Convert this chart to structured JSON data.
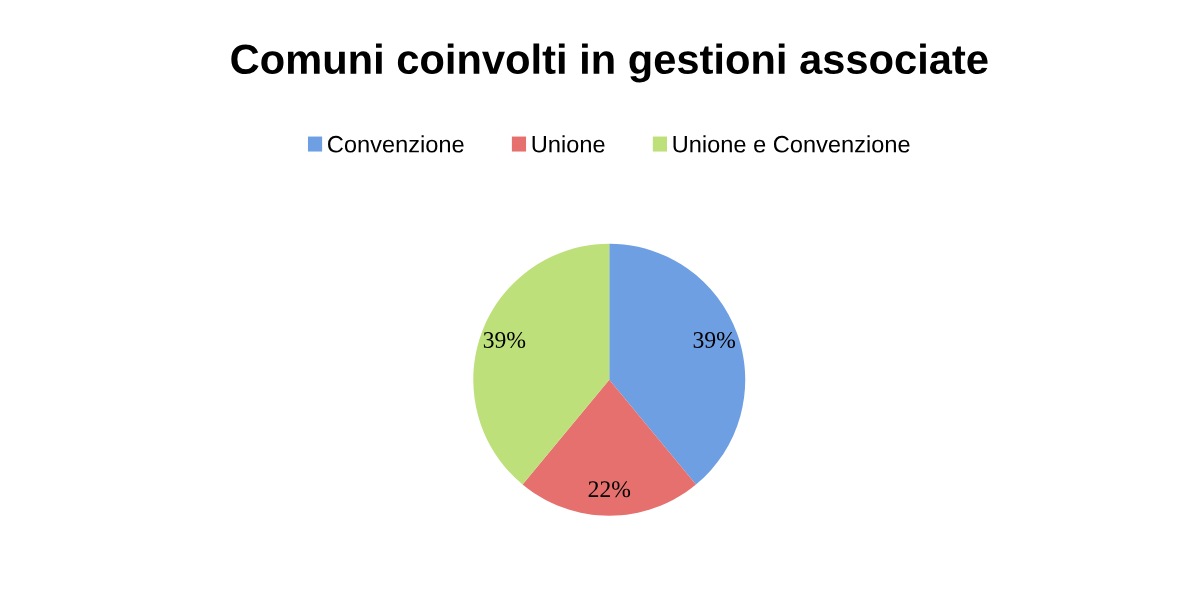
{
  "chart_data": {
    "type": "pie",
    "title": "Comuni coinvolti in gestioni associate",
    "categories": [
      "Convenzione",
      "Unione",
      "Unione e Convenzione"
    ],
    "values": [
      39,
      22,
      39
    ],
    "colors": [
      "#6f9fe3",
      "#e5706e",
      "#bde07a"
    ],
    "value_labels": [
      "39%",
      "22%",
      "39%"
    ],
    "legend": "top"
  }
}
